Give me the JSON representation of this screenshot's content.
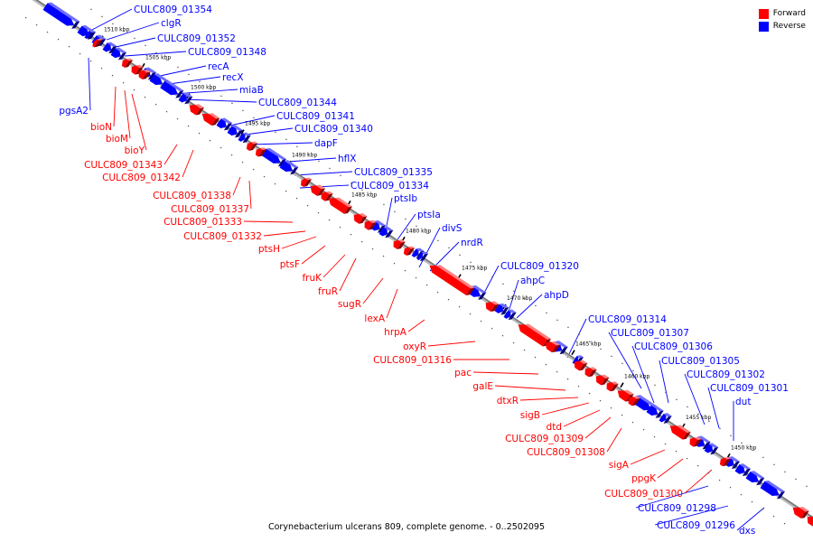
{
  "caption": "Corynebacterium ulcerans 809, complete genome. - 0..2502095",
  "legend": [
    {
      "label": "Forward",
      "color": "#ff0000"
    },
    {
      "label": "Reverse",
      "color": "#0000ff"
    }
  ],
  "colors": {
    "forward": "#ff0000",
    "reverse": "#0000ff",
    "axis": "#8a8a8a"
  },
  "ticks": [
    "1510 kbp",
    "1505 kbp",
    "1500 kbp",
    "1495 kbp",
    "1490 kbp",
    "1485 kbp",
    "1480 kbp",
    "1475 kbp",
    "1470 kbp",
    "1465 kbp",
    "1460 kbp",
    "1455 kbp",
    "1450 kbp"
  ],
  "genes_reverse": [
    "CULC809_01354",
    "clgR",
    "CULC809_01352",
    "CULC809_01348",
    "recA",
    "recX",
    "miaB",
    "CULC809_01344",
    "CULC809_01341",
    "CULC809_01340",
    "dapF",
    "hflX",
    "CULC809_01335",
    "CULC809_01334",
    "ptsIb",
    "ptsIa",
    "divS",
    "nrdR",
    "CULC809_01320",
    "ahpC",
    "ahpD",
    "CULC809_01314",
    "CULC809_01307",
    "CULC809_01306",
    "CULC809_01305",
    "CULC809_01302",
    "CULC809_01301",
    "dut",
    "CULC809_01298",
    "CULC809_01296",
    "dxs",
    "pgsA2"
  ],
  "genes_forward": [
    "bioN",
    "bioM",
    "bioY",
    "CULC809_01343",
    "CULC809_01342",
    "CULC809_01338",
    "CULC809_01337",
    "CULC809_01333",
    "CULC809_01332",
    "ptsH",
    "ptsF",
    "fruK",
    "fruR",
    "sugR",
    "lexA",
    "hrpA",
    "oxyR",
    "CULC809_01316",
    "pac",
    "galE",
    "dtxR",
    "sigB",
    "dtd",
    "CULC809_01309",
    "CULC809_01308",
    "sigA",
    "ppgK",
    "CULC809_01300"
  ]
}
